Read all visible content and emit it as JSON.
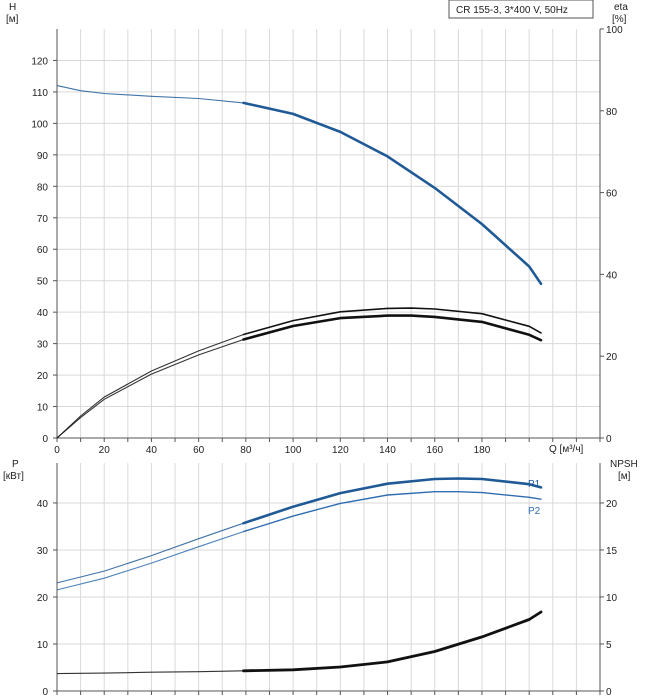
{
  "title_box": "CR 155-3, 3*400 V, 50Hz",
  "colors": {
    "h_curve": "#1f5a96",
    "eta_curve": "#111111",
    "p1_curve": "#1f5a96",
    "p2_curve": "#2f6db0",
    "npsh_curve": "#111111",
    "grid": "#d9d9d9",
    "axis": "#555555"
  },
  "chart_data": [
    {
      "type": "line",
      "name": "upper",
      "x_ticks": [
        "0",
        "20",
        "40",
        "60",
        "80",
        "100",
        "120",
        "140",
        "160",
        "180"
      ],
      "x_label": "Q [м³/ч]",
      "xlim": [
        0,
        230
      ],
      "left_axis": {
        "label": "H",
        "unit": "[м]",
        "ylim": [
          0,
          130
        ],
        "ticks": [
          "0",
          "10",
          "20",
          "30",
          "40",
          "50",
          "60",
          "70",
          "80",
          "90",
          "100",
          "110",
          "120"
        ]
      },
      "right_axis": {
        "label": "eta",
        "unit": "[%]",
        "ylim": [
          0,
          100
        ],
        "ticks": [
          "0",
          "20",
          "40",
          "60",
          "80",
          "100"
        ]
      },
      "grid": true,
      "series": [
        {
          "key": "H",
          "axis": "left",
          "x": [
            0,
            10,
            20,
            40,
            60,
            79,
            100,
            120,
            140,
            160,
            180,
            200,
            205
          ],
          "y": [
            112,
            110.4,
            109.5,
            108.6,
            107.9,
            106.5,
            103,
            97.3,
            89.5,
            79.5,
            68,
            54.5,
            49
          ],
          "solid_from_x": 79
        },
        {
          "key": "eta-outer",
          "axis": "left",
          "x": [
            0,
            10,
            20,
            40,
            60,
            79,
            100,
            120,
            140,
            150,
            160,
            180,
            200,
            205
          ],
          "y": [
            0,
            7,
            13,
            21.3,
            27.7,
            32.9,
            37.3,
            40.1,
            41.2,
            41.3,
            41.0,
            39.5,
            35.5,
            33.4
          ]
        },
        {
          "key": "eta-inner",
          "axis": "left",
          "x": [
            0,
            10,
            20,
            40,
            60,
            79,
            100,
            120,
            140,
            150,
            160,
            180,
            200,
            205
          ],
          "y": [
            0,
            6.5,
            12.3,
            20.3,
            26.4,
            31.3,
            35.6,
            38.1,
            38.9,
            38.9,
            38.5,
            36.9,
            32.8,
            31.1
          ]
        }
      ]
    },
    {
      "type": "line",
      "name": "lower",
      "xlim": [
        0,
        230
      ],
      "left_axis": {
        "label": "P",
        "unit": "[кВт]",
        "ylim": [
          0,
          48.5
        ],
        "ticks": [
          "0",
          "10",
          "20",
          "30",
          "40"
        ]
      },
      "right_axis": {
        "label": "NPSH",
        "unit": "[м]",
        "ylim": [
          0,
          24.25
        ],
        "ticks": [
          "0",
          "5",
          "10",
          "15",
          "20"
        ]
      },
      "grid": true,
      "series": [
        {
          "key": "P1",
          "name": "P1",
          "axis": "left",
          "x": [
            0,
            20,
            40,
            60,
            79,
            100,
            120,
            140,
            160,
            170,
            180,
            200,
            205
          ],
          "y": [
            23,
            25.5,
            28.8,
            32.4,
            35.7,
            39.2,
            42.1,
            44.1,
            45.1,
            45.2,
            45.1,
            44.0,
            43.3
          ],
          "solid_from_x": 79
        },
        {
          "key": "P2",
          "name": "P2",
          "axis": "left",
          "x": [
            0,
            20,
            40,
            60,
            79,
            100,
            120,
            140,
            160,
            170,
            180,
            200,
            205
          ],
          "y": [
            21.5,
            24.0,
            27.2,
            30.7,
            33.9,
            37.2,
            39.9,
            41.7,
            42.4,
            42.4,
            42.2,
            41.2,
            40.8
          ]
        },
        {
          "key": "NPSH",
          "axis": "right",
          "x": [
            0,
            20,
            40,
            60,
            79,
            100,
            120,
            140,
            160,
            180,
            200,
            205
          ],
          "y": [
            1.85,
            1.9,
            2.0,
            2.05,
            2.15,
            2.25,
            2.55,
            3.1,
            4.2,
            5.75,
            7.6,
            8.4
          ],
          "solid_from_x": 79
        }
      ]
    }
  ]
}
